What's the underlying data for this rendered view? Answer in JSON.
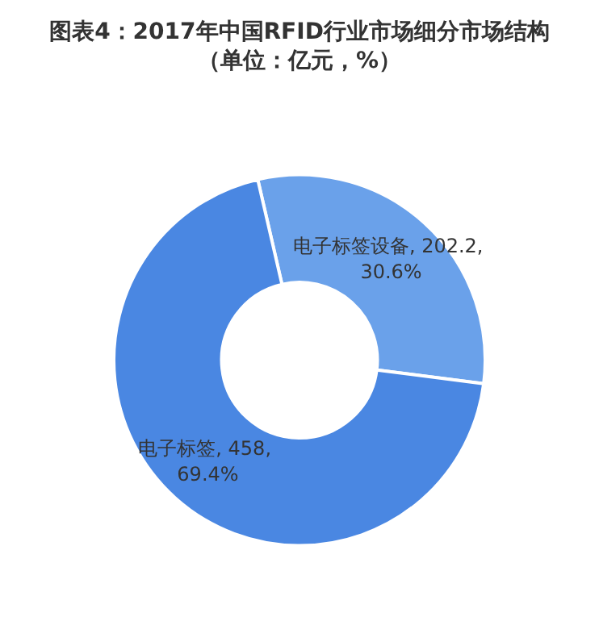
{
  "chart_data": {
    "type": "donut",
    "title": "图表4：2017年中国RFID行业市场细分市场结构",
    "subtitle": "（单位：亿元，%）",
    "categories": [
      "电子标签设备",
      "电子标签"
    ],
    "values": [
      202.2,
      458
    ],
    "colors": [
      "#6aa1ea",
      "#4a87e2"
    ],
    "value_labels": [
      "202.2, 30.6%",
      "458, 69.4%"
    ]
  }
}
